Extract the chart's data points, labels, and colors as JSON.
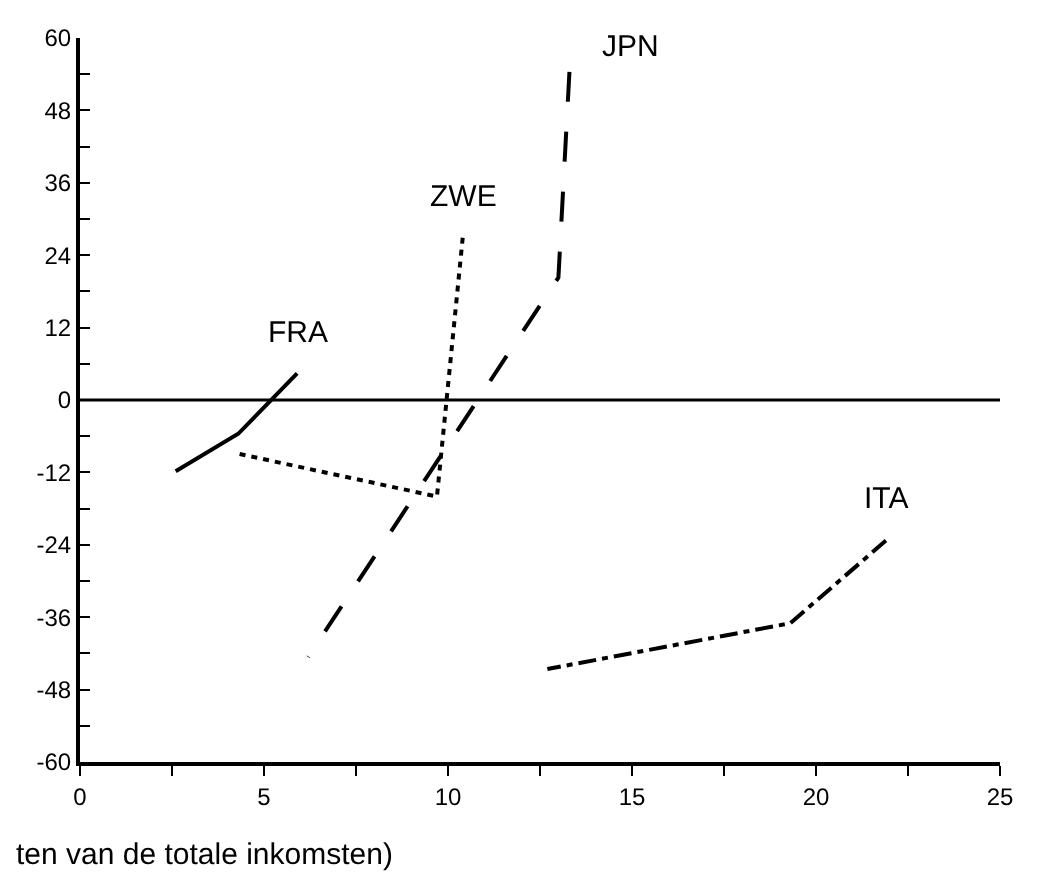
{
  "chart_data": {
    "type": "line",
    "xlabel": "ten van de totale inkomsten)",
    "series": [
      {
        "name": "FRA",
        "color": "#000000",
        "line_style": "solid",
        "x": [
          2.6,
          4.3,
          5.9
        ],
        "values": [
          -11.8,
          -5.6,
          4.4
        ]
      },
      {
        "name": "ZWE",
        "color": "#000000",
        "line_style": "dotted",
        "x": [
          4.3,
          9.7,
          10.4
        ],
        "values": [
          -8.9,
          -16,
          26.9
        ]
      },
      {
        "name": "JPN",
        "color": "#000000",
        "line_style": "dashed",
        "x": [
          6.2,
          13.0,
          13.3
        ],
        "values": [
          -42.6,
          20.3,
          54.4
        ]
      },
      {
        "name": "ITA",
        "color": "#000000",
        "line_style": "dashdot",
        "x": [
          12.7,
          19.3,
          21.9
        ],
        "values": [
          -44.6,
          -37,
          -23.3
        ]
      }
    ],
    "ref_lines": [
      {
        "axis": "y",
        "value": 0,
        "color": "#000000"
      }
    ],
    "xlim": [
      0,
      25
    ],
    "ylim": [
      -60,
      60
    ],
    "xticks": [
      0,
      {
        "value": 2.5,
        "label": null
      },
      5,
      {
        "value": 7.5,
        "label": null
      },
      10,
      {
        "value": 12.5,
        "label": null
      },
      15,
      {
        "value": 17.5,
        "label": null
      },
      20,
      {
        "value": 22.5,
        "label": null
      },
      25
    ],
    "yticks": [
      -60,
      {
        "value": -54,
        "label": null
      },
      -48,
      {
        "value": -42,
        "label": null
      },
      -36,
      {
        "value": -30,
        "label": null
      },
      -24,
      {
        "value": -18,
        "label": null
      },
      -12,
      {
        "value": -6,
        "label": null
      },
      0,
      {
        "value": 6,
        "label": null
      },
      12,
      {
        "value": 18,
        "label": null
      },
      24,
      {
        "value": 30,
        "label": null
      },
      36,
      {
        "value": 42,
        "label": null
      },
      48,
      {
        "value": 54,
        "label": null
      },
      60
    ],
    "legend": false,
    "marker": "none"
  }
}
